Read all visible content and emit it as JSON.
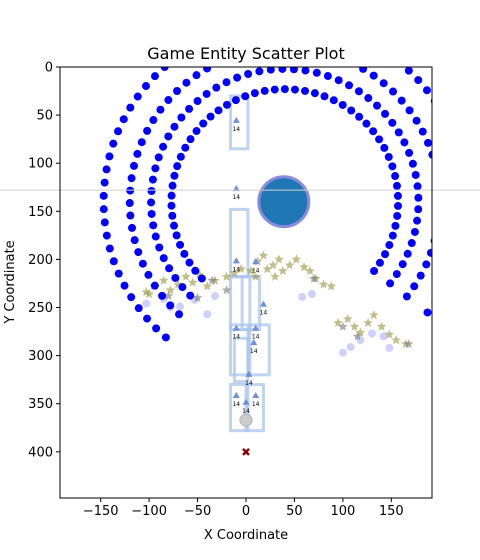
{
  "chart_data": {
    "type": "scatter",
    "title": "Game Entity Scatter Plot",
    "xlabel": "X Coordinate",
    "ylabel": "Y Coordinate",
    "xlim": [
      -192,
      192
    ],
    "ylim": [
      448,
      0
    ],
    "y_inverted": true,
    "grid": false,
    "legend": "none",
    "x_ticks": [
      -150,
      -100,
      -50,
      0,
      50,
      100,
      150
    ],
    "y_ticks": [
      0,
      50,
      100,
      150,
      200,
      250,
      300,
      350,
      400
    ],
    "colors": {
      "ring_points": "#0000ff",
      "faint_points": "#aaaaff",
      "stars": "#8b8b2a",
      "gray_stars": "#777777",
      "outline_boxes": "#aac4ee",
      "triangles": "#6f8fd8",
      "big_circle_fill": "#1f77b4",
      "big_circle_edge": "#8b8bdd",
      "marker_x": "#8b0000",
      "ghost_circle": "#cccccc",
      "guide_line": "#d0d0d0"
    },
    "guide_line_y": 128,
    "big_circle": {
      "x": 39,
      "y": 140,
      "r": 25
    },
    "ghost_circle": {
      "x": 0,
      "y": 367
    },
    "marker_x": {
      "x": 0,
      "y": 400
    },
    "rings": [
      {
        "cx": 40,
        "cy": 140,
        "r": 117,
        "a_start": 137,
        "a_end": 398,
        "n": 52
      },
      {
        "cx": 40,
        "cy": 140,
        "r": 138,
        "a_start": 135,
        "a_end": 398,
        "n": 54
      },
      {
        "cx": 40,
        "cy": 140,
        "r": 160,
        "a_start": 133,
        "a_end": 398,
        "n": 58
      },
      {
        "cx": 40,
        "cy": 140,
        "r": 187,
        "a_start": 131,
        "a_end": 398,
        "n": 64
      }
    ],
    "faint_points": [
      [
        -103,
        246
      ],
      [
        -85,
        241
      ],
      [
        -78,
        250
      ],
      [
        -68,
        249
      ],
      [
        -53,
        242
      ],
      [
        -40,
        257
      ],
      [
        -32,
        238
      ],
      [
        58,
        239
      ],
      [
        68,
        236
      ],
      [
        100,
        297
      ],
      [
        108,
        291
      ],
      [
        118,
        284
      ],
      [
        130,
        277
      ],
      [
        142,
        280
      ],
      [
        148,
        292
      ]
    ],
    "stars": [
      [
        -103,
        234
      ],
      [
        -95,
        228
      ],
      [
        -85,
        222
      ],
      [
        -78,
        232
      ],
      [
        -70,
        226
      ],
      [
        -62,
        218
      ],
      [
        -55,
        224
      ],
      [
        -48,
        216
      ],
      [
        -40,
        228
      ],
      [
        -32,
        222
      ],
      [
        -20,
        218
      ],
      [
        -12,
        214
      ],
      [
        -5,
        210
      ],
      [
        5,
        212
      ],
      [
        12,
        202
      ],
      [
        18,
        196
      ],
      [
        22,
        210
      ],
      [
        28,
        206
      ],
      [
        34,
        200
      ],
      [
        38,
        212
      ],
      [
        45,
        206
      ],
      [
        52,
        200
      ],
      [
        60,
        208
      ],
      [
        66,
        212
      ],
      [
        72,
        220
      ],
      [
        80,
        226
      ],
      [
        88,
        228
      ],
      [
        95,
        266
      ],
      [
        105,
        262
      ],
      [
        112,
        270
      ],
      [
        118,
        276
      ],
      [
        126,
        266
      ],
      [
        132,
        258
      ],
      [
        140,
        270
      ],
      [
        148,
        278
      ],
      [
        155,
        284
      ],
      [
        165,
        288
      ],
      [
        -100,
        236
      ],
      [
        30,
        218
      ],
      [
        10,
        218
      ]
    ],
    "gray_stars": [
      [
        -80,
        238
      ],
      [
        -50,
        240
      ],
      [
        -35,
        222
      ],
      [
        70,
        220
      ],
      [
        100,
        270
      ],
      [
        115,
        280
      ],
      [
        168,
        288
      ],
      [
        -20,
        232
      ]
    ],
    "outline_boxes": [
      [
        -16,
        30,
        18,
        55
      ],
      [
        -16,
        148,
        18,
        70
      ],
      [
        -16,
        218,
        20,
        55
      ],
      [
        -4,
        218,
        18,
        55
      ],
      [
        -16,
        268,
        18,
        52
      ],
      [
        4,
        268,
        20,
        52
      ],
      [
        -16,
        330,
        18,
        48
      ],
      [
        0,
        330,
        18,
        48
      ],
      [
        -12,
        282,
        14,
        45
      ]
    ],
    "triangles": [
      [
        -10,
        56
      ],
      [
        -10,
        127
      ],
      [
        -10,
        202
      ],
      [
        10,
        203
      ],
      [
        18,
        247
      ],
      [
        -10,
        272
      ],
      [
        10,
        272
      ],
      [
        8,
        287
      ],
      [
        3,
        320
      ],
      [
        -10,
        342
      ],
      [
        10,
        342
      ],
      [
        0,
        349
      ]
    ],
    "triangle_label": "14",
    "top_triangle_label": "14",
    "top_label_point": [
      -10,
      0
    ]
  }
}
